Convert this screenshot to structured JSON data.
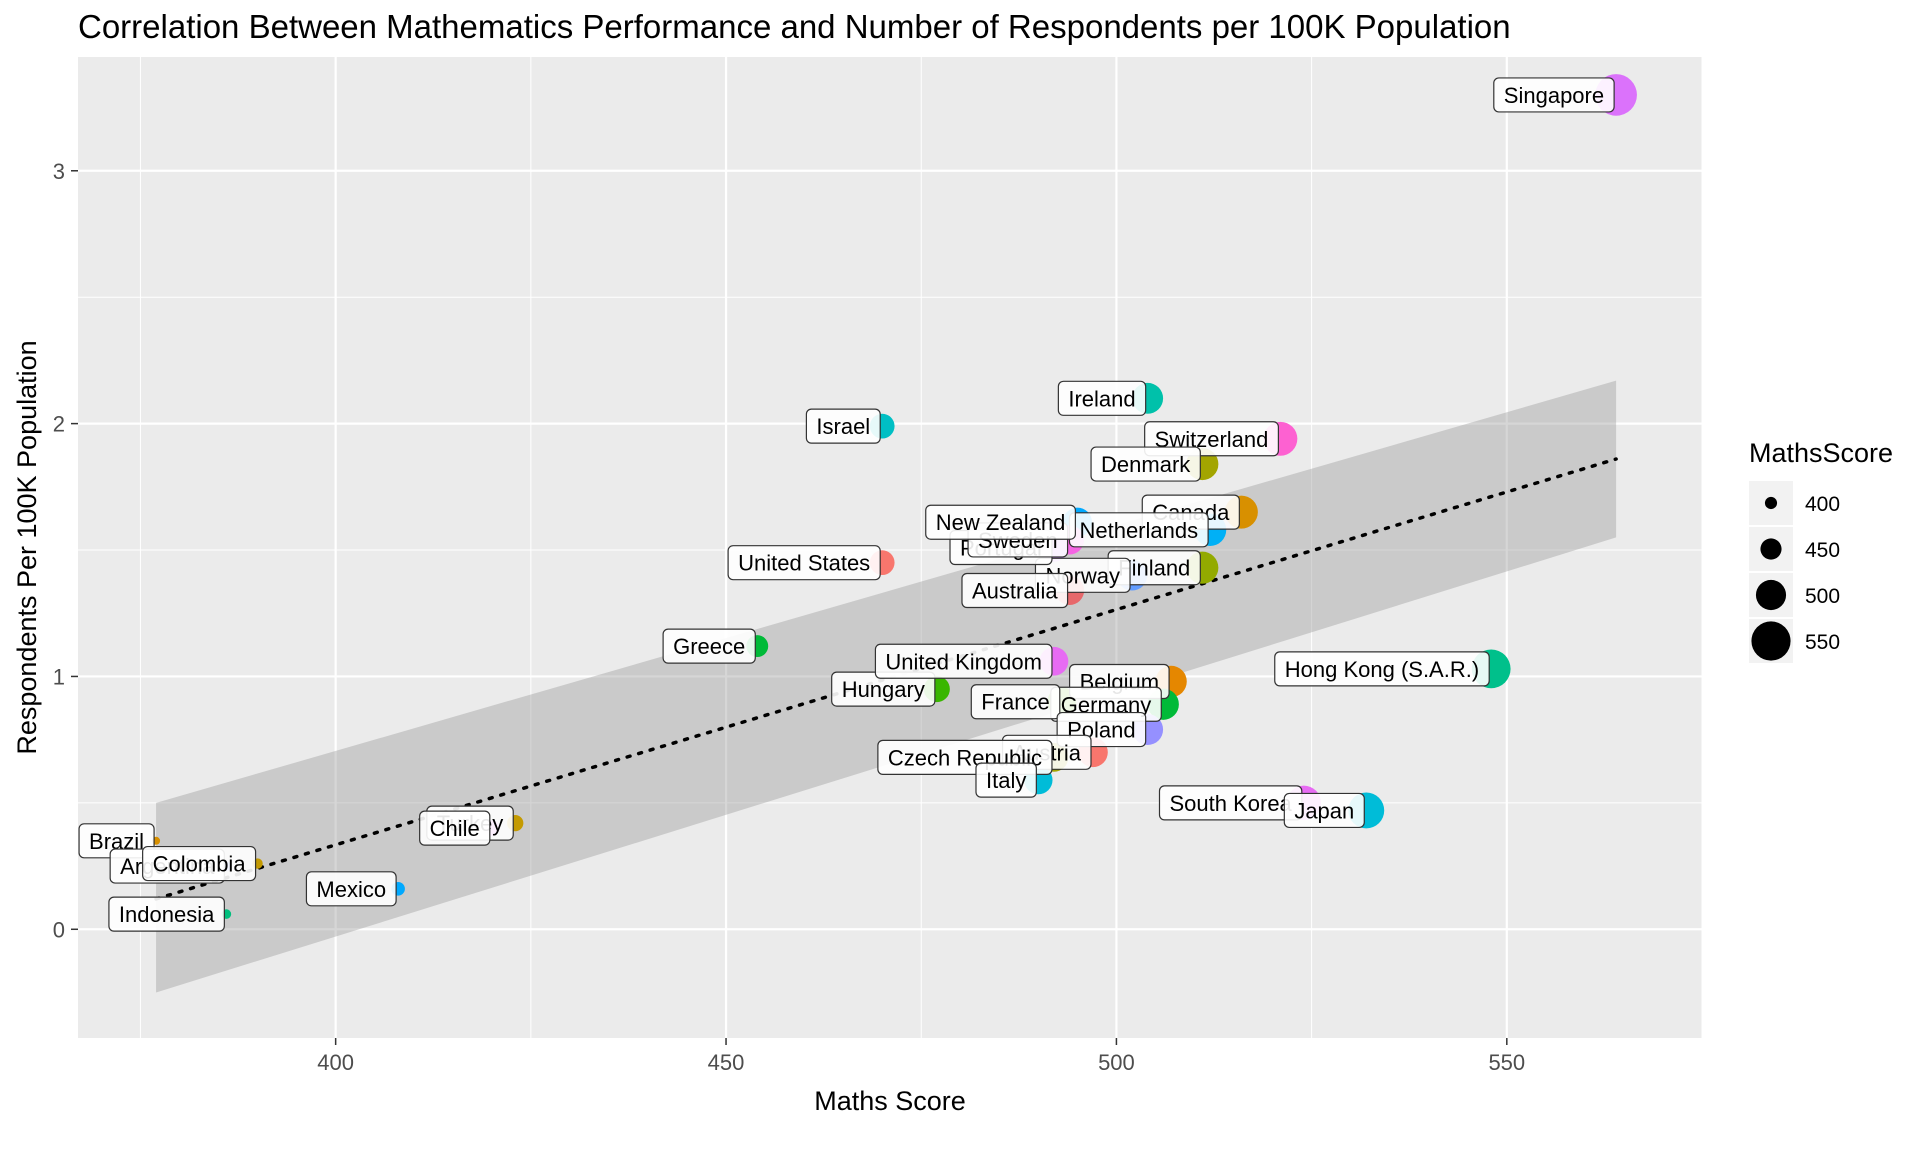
{
  "chart_data": {
    "type": "scatter",
    "title": "Correlation Between Mathematics Performance and Number of Respondents per 100K Population",
    "xlabel": "Maths Score",
    "ylabel": "Respondents Per 100K Population",
    "xlim": [
      367,
      575
    ],
    "ylim": [
      -0.43,
      3.45
    ],
    "x_ticks": [
      400,
      450,
      500,
      550
    ],
    "y_ticks": [
      0,
      1,
      2,
      3
    ],
    "grid": true,
    "background": "#ebebeb",
    "trend": {
      "type": "linear",
      "style": "dotted",
      "x_start": 377,
      "y_start": 0.12,
      "x_end": 564,
      "y_end": 1.86,
      "ci_band": [
        {
          "x": 377,
          "lower": -0.25,
          "upper": 0.5
        },
        {
          "x": 564,
          "lower": 1.55,
          "upper": 2.17
        }
      ]
    },
    "legend": {
      "title": "MathsScore",
      "position": "right",
      "entries": [
        {
          "label": "400",
          "value": 400
        },
        {
          "label": "450",
          "value": 450
        },
        {
          "label": "500",
          "value": 500
        },
        {
          "label": "550",
          "value": 550
        }
      ]
    },
    "points": [
      {
        "country": "Singapore",
        "x": 564,
        "y": 3.3,
        "color": "#db72fb"
      },
      {
        "country": "Ireland",
        "x": 504,
        "y": 2.1,
        "color": "#00c1aa"
      },
      {
        "country": "Israel",
        "x": 470,
        "y": 1.99,
        "color": "#00bfc4"
      },
      {
        "country": "Switzerland",
        "x": 521,
        "y": 1.94,
        "color": "#fd61d1"
      },
      {
        "country": "Denmark",
        "x": 511,
        "y": 1.84,
        "color": "#a3a500"
      },
      {
        "country": "Canada",
        "x": 516,
        "y": 1.65,
        "color": "#d89000"
      },
      {
        "country": "Netherlands",
        "x": 512,
        "y": 1.58,
        "color": "#00b0f6"
      },
      {
        "country": "New Zealand",
        "x": 495,
        "y": 1.61,
        "color": "#00a9ff"
      },
      {
        "country": "Sweden",
        "x": 494,
        "y": 1.54,
        "color": "#f564e3"
      },
      {
        "country": "Portugal",
        "x": 492,
        "y": 1.51,
        "color": "#c77cff"
      },
      {
        "country": "United States",
        "x": 470,
        "y": 1.45,
        "color": "#f8766d"
      },
      {
        "country": "Finland",
        "x": 511,
        "y": 1.43,
        "color": "#93aa00"
      },
      {
        "country": "Norway",
        "x": 502,
        "y": 1.4,
        "color": "#619cff"
      },
      {
        "country": "Australia",
        "x": 494,
        "y": 1.34,
        "color": "#e7686b"
      },
      {
        "country": "Greece",
        "x": 454,
        "y": 1.12,
        "color": "#00ba38"
      },
      {
        "country": "United Kingdom",
        "x": 492,
        "y": 1.06,
        "color": "#e76bf3"
      },
      {
        "country": "Hungary",
        "x": 477,
        "y": 0.95,
        "color": "#39b600"
      },
      {
        "country": "Hong Kong (S.A.R.)",
        "x": 548,
        "y": 1.03,
        "color": "#00c08b"
      },
      {
        "country": "Belgium",
        "x": 507,
        "y": 0.98,
        "color": "#e58700"
      },
      {
        "country": "France",
        "x": 493,
        "y": 0.9,
        "color": "#5bb300"
      },
      {
        "country": "Germany",
        "x": 506,
        "y": 0.89,
        "color": "#00ba38"
      },
      {
        "country": "Poland",
        "x": 504,
        "y": 0.79,
        "color": "#9590ff"
      },
      {
        "country": "Czech Republic",
        "x": 492,
        "y": 0.68,
        "color": "#a3a500"
      },
      {
        "country": "Austria",
        "x": 497,
        "y": 0.7,
        "color": "#f8766d"
      },
      {
        "country": "Italy",
        "x": 490,
        "y": 0.59,
        "color": "#00bcd8"
      },
      {
        "country": "South Korea",
        "x": 524,
        "y": 0.5,
        "color": "#e76bf3"
      },
      {
        "country": "Japan",
        "x": 532,
        "y": 0.47,
        "color": "#00bcd8"
      },
      {
        "country": "Chile",
        "x": 420,
        "y": 0.4,
        "color": "#e76bf3"
      },
      {
        "country": "Turkey",
        "x": 423,
        "y": 0.42,
        "color": "#c49a00"
      },
      {
        "country": "Brazil",
        "x": 377,
        "y": 0.35,
        "color": "#d89000"
      },
      {
        "country": "Colombia",
        "x": 390,
        "y": 0.26,
        "color": "#c49a00"
      },
      {
        "country": "Argentina",
        "x": 386,
        "y": 0.25,
        "color": "#8494ff"
      },
      {
        "country": "Mexico",
        "x": 408,
        "y": 0.16,
        "color": "#00a9ff"
      },
      {
        "country": "Indonesia",
        "x": 386,
        "y": 0.06,
        "color": "#00bf7d"
      }
    ],
    "labels": [
      {
        "text": "Singapore",
        "x": 564,
        "y": 3.3
      },
      {
        "text": "Ireland",
        "x": 504,
        "y": 2.1
      },
      {
        "text": "Israel",
        "x": 470,
        "y": 1.99
      },
      {
        "text": "Switzerland",
        "x": 521,
        "y": 1.94
      },
      {
        "text": "Denmark",
        "x": 511,
        "y": 1.84
      },
      {
        "text": "Canada",
        "x": 516,
        "y": 1.65
      },
      {
        "text": "Netherlands",
        "x": 512,
        "y": 1.58
      },
      {
        "text": "Finland",
        "x": 511,
        "y": 1.43
      },
      {
        "text": "Norway",
        "x": 502,
        "y": 1.4
      },
      {
        "text": "Australia",
        "x": 494,
        "y": 1.34
      },
      {
        "text": "Portugal",
        "x": 492,
        "y": 1.51
      },
      {
        "text": "Sweden",
        "x": 494,
        "y": 1.54
      },
      {
        "text": "New Zealand",
        "x": 495,
        "y": 1.61
      },
      {
        "text": "United States",
        "x": 470,
        "y": 1.45
      },
      {
        "text": "Greece",
        "x": 454,
        "y": 1.12
      },
      {
        "text": "Hungary",
        "x": 477,
        "y": 0.95
      },
      {
        "text": "United Kingdom",
        "x": 492,
        "y": 1.06
      },
      {
        "text": "Hong Kong (S.A.R.)",
        "x": 548,
        "y": 1.03
      },
      {
        "text": "Belgium",
        "x": 507,
        "y": 0.98
      },
      {
        "text": "Germany",
        "x": 506,
        "y": 0.89
      },
      {
        "text": "France",
        "x": 493,
        "y": 0.9
      },
      {
        "text": "Poland",
        "x": 504,
        "y": 0.79
      },
      {
        "text": "Austria",
        "x": 497,
        "y": 0.7
      },
      {
        "text": "Czech Republic",
        "x": 492,
        "y": 0.68
      },
      {
        "text": "Italy",
        "x": 490,
        "y": 0.59
      },
      {
        "text": "South Korea",
        "x": 524,
        "y": 0.5
      },
      {
        "text": "Japan",
        "x": 532,
        "y": 0.47
      },
      {
        "text": "Turkey",
        "x": 423,
        "y": 0.42
      },
      {
        "text": "Chile",
        "x": 420,
        "y": 0.4
      },
      {
        "text": "Brazil",
        "x": 377,
        "y": 0.35
      },
      {
        "text": "Argentina",
        "x": 386,
        "y": 0.25
      },
      {
        "text": "Colombia",
        "x": 390,
        "y": 0.26
      },
      {
        "text": "Mexico",
        "x": 408,
        "y": 0.16
      },
      {
        "text": "Indonesia",
        "x": 386,
        "y": 0.06
      }
    ]
  }
}
